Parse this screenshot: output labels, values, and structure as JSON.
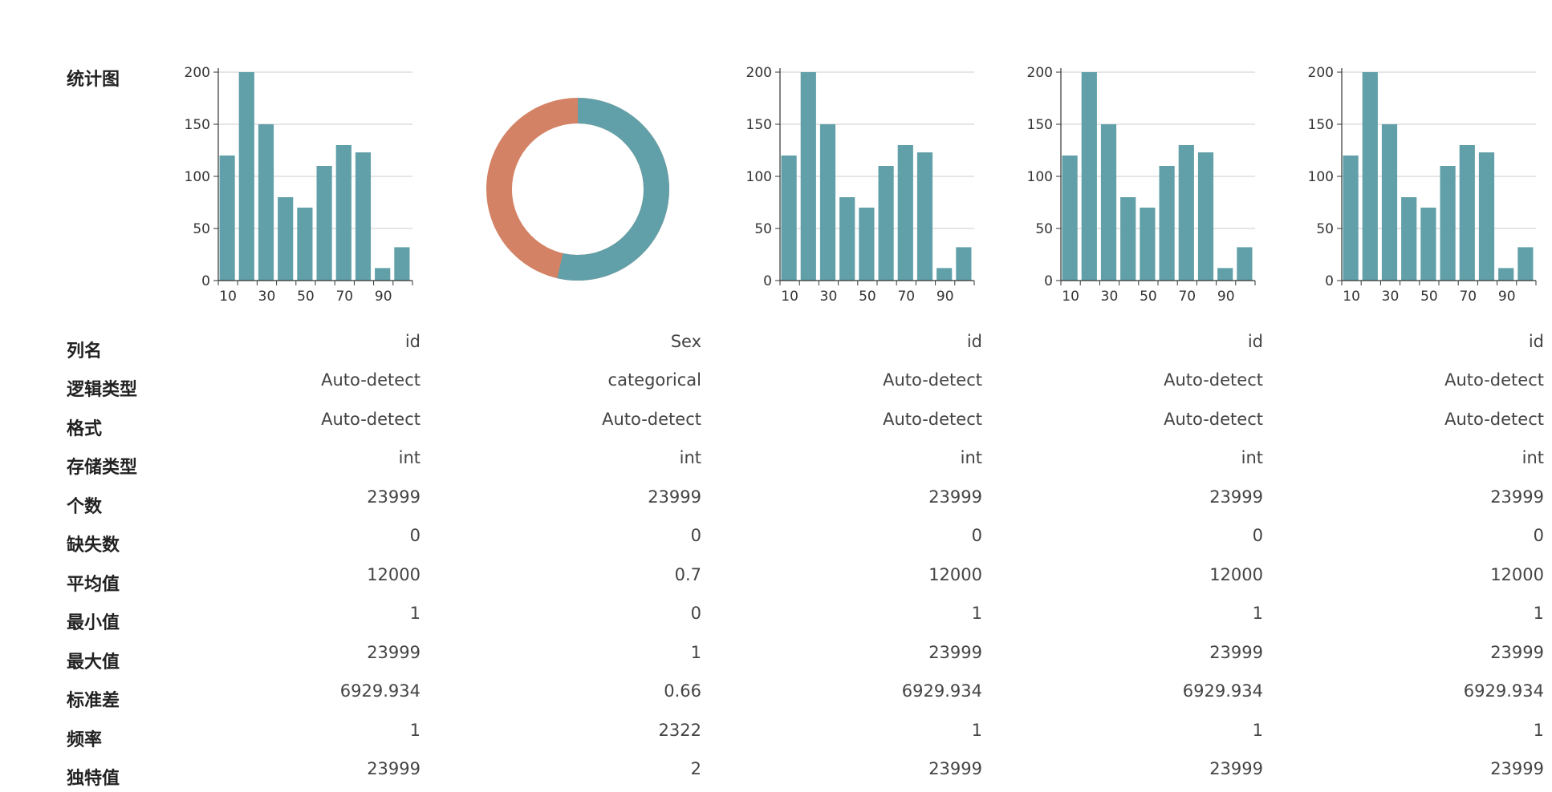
{
  "row_labels": [
    "统计图",
    "列名",
    "逻辑类型",
    "格式",
    "存储类型",
    "个数",
    "缺失数",
    "平均值",
    "最小值",
    "最大值",
    "标准差",
    "频率",
    "独特值"
  ],
  "colors": {
    "bar": "#61a0a8",
    "pie_primary": "#61a0a8",
    "pie_secondary": "#d48265",
    "grid": "#cccccc",
    "axis": "#333333"
  },
  "columns": [
    {
      "chart_kind": "histogram",
      "values": {
        "name": "id",
        "logical_type": "Auto-detect",
        "format": "Auto-detect",
        "storage": "int",
        "count": "23999",
        "missing": "0",
        "mean": "12000",
        "min": "1",
        "max": "23999",
        "std": "6929.934",
        "freq": "1",
        "unique": "23999"
      }
    },
    {
      "chart_kind": "donut",
      "values": {
        "name": "Sex",
        "logical_type": "categorical",
        "format": "Auto-detect",
        "storage": "int",
        "count": "23999",
        "missing": "0",
        "mean": "0.7",
        "min": "0",
        "max": "1",
        "std": "0.66",
        "freq": "2322",
        "unique": "2"
      }
    },
    {
      "chart_kind": "histogram",
      "values": {
        "name": "id",
        "logical_type": "Auto-detect",
        "format": "Auto-detect",
        "storage": "int",
        "count": "23999",
        "missing": "0",
        "mean": "12000",
        "min": "1",
        "max": "23999",
        "std": "6929.934",
        "freq": "1",
        "unique": "23999"
      }
    },
    {
      "chart_kind": "histogram",
      "values": {
        "name": "id",
        "logical_type": "Auto-detect",
        "format": "Auto-detect",
        "storage": "int",
        "count": "23999",
        "missing": "0",
        "mean": "12000",
        "min": "1",
        "max": "23999",
        "std": "6929.934",
        "freq": "1",
        "unique": "23999"
      }
    },
    {
      "chart_kind": "histogram",
      "values": {
        "name": "id",
        "logical_type": "Auto-detect",
        "format": "Auto-detect",
        "storage": "int",
        "count": "23999",
        "missing": "0",
        "mean": "12000",
        "min": "1",
        "max": "23999",
        "std": "6929.934",
        "freq": "1",
        "unique": "23999"
      }
    }
  ],
  "chart_data": [
    {
      "type": "bar",
      "x": [
        10,
        20,
        30,
        40,
        50,
        60,
        70,
        80,
        90,
        100
      ],
      "values": [
        120,
        200,
        150,
        80,
        70,
        110,
        130,
        123,
        12,
        32
      ],
      "xticks": [
        "10",
        "30",
        "50",
        "70",
        "90"
      ],
      "yticks": [
        "0",
        "50",
        "100",
        "150",
        "200"
      ],
      "ylim": [
        0,
        200
      ],
      "grid": true
    },
    {
      "type": "pie",
      "donut": true,
      "slice_count": 2
    },
    {
      "type": "bar",
      "x": [
        10,
        20,
        30,
        40,
        50,
        60,
        70,
        80,
        90,
        100
      ],
      "values": [
        120,
        200,
        150,
        80,
        70,
        110,
        130,
        123,
        12,
        32
      ],
      "xticks": [
        "10",
        "30",
        "50",
        "70",
        "90"
      ],
      "yticks": [
        "0",
        "50",
        "100",
        "150",
        "200"
      ],
      "ylim": [
        0,
        200
      ],
      "grid": true
    },
    {
      "type": "bar",
      "x": [
        10,
        20,
        30,
        40,
        50,
        60,
        70,
        80,
        90,
        100
      ],
      "values": [
        120,
        200,
        150,
        80,
        70,
        110,
        130,
        123,
        12,
        32
      ],
      "xticks": [
        "10",
        "30",
        "50",
        "70",
        "90"
      ],
      "yticks": [
        "0",
        "50",
        "100",
        "150",
        "200"
      ],
      "ylim": [
        0,
        200
      ],
      "grid": true
    },
    {
      "type": "bar",
      "x": [
        10,
        20,
        30,
        40,
        50,
        60,
        70,
        80,
        90,
        100
      ],
      "values": [
        120,
        200,
        150,
        80,
        70,
        110,
        130,
        123,
        12,
        32
      ],
      "xticks": [
        "10",
        "30",
        "50",
        "70",
        "90"
      ],
      "yticks": [
        "0",
        "50",
        "100",
        "150",
        "200"
      ],
      "ylim": [
        0,
        200
      ],
      "grid": true
    }
  ]
}
